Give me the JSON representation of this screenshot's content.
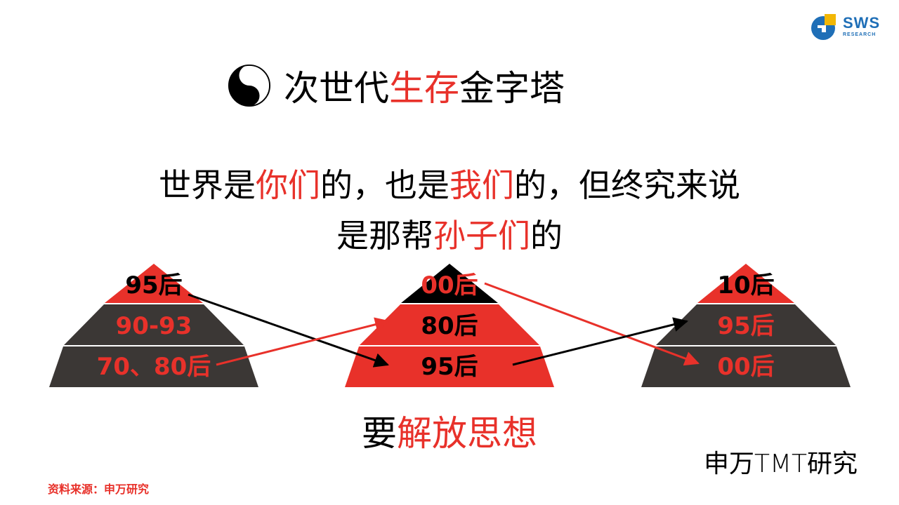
{
  "logo": {
    "text": "SWS",
    "subtext": "RESEARCH",
    "colors": {
      "blue": "#1f6fb7",
      "gold": "#f2b705"
    }
  },
  "title": {
    "icon": "yin-yang-icon",
    "prefix": "次世代",
    "highlight": "生存",
    "suffix": "金字塔"
  },
  "quote": {
    "line1": {
      "a": "世界是",
      "b": "你们",
      "c": "的，也是",
      "d": "我们",
      "e": "的，但终究来说"
    },
    "line2": {
      "a": "是那帮",
      "b": "孙子们",
      "c": "的"
    }
  },
  "pyramids": [
    {
      "levels": [
        "95后",
        "90-93",
        "70、80后"
      ]
    },
    {
      "levels": [
        "00后",
        "80后",
        "95后"
      ]
    },
    {
      "levels": [
        "10后",
        "95后",
        "00后"
      ]
    }
  ],
  "bottom": {
    "a": "要",
    "b": "解放思想"
  },
  "brand": "申万TMT研究",
  "source": "资料来源：申万研究",
  "colors": {
    "red": "#e8312a",
    "dark": "#3b3735",
    "black": "#000000",
    "white": "#ffffff"
  }
}
